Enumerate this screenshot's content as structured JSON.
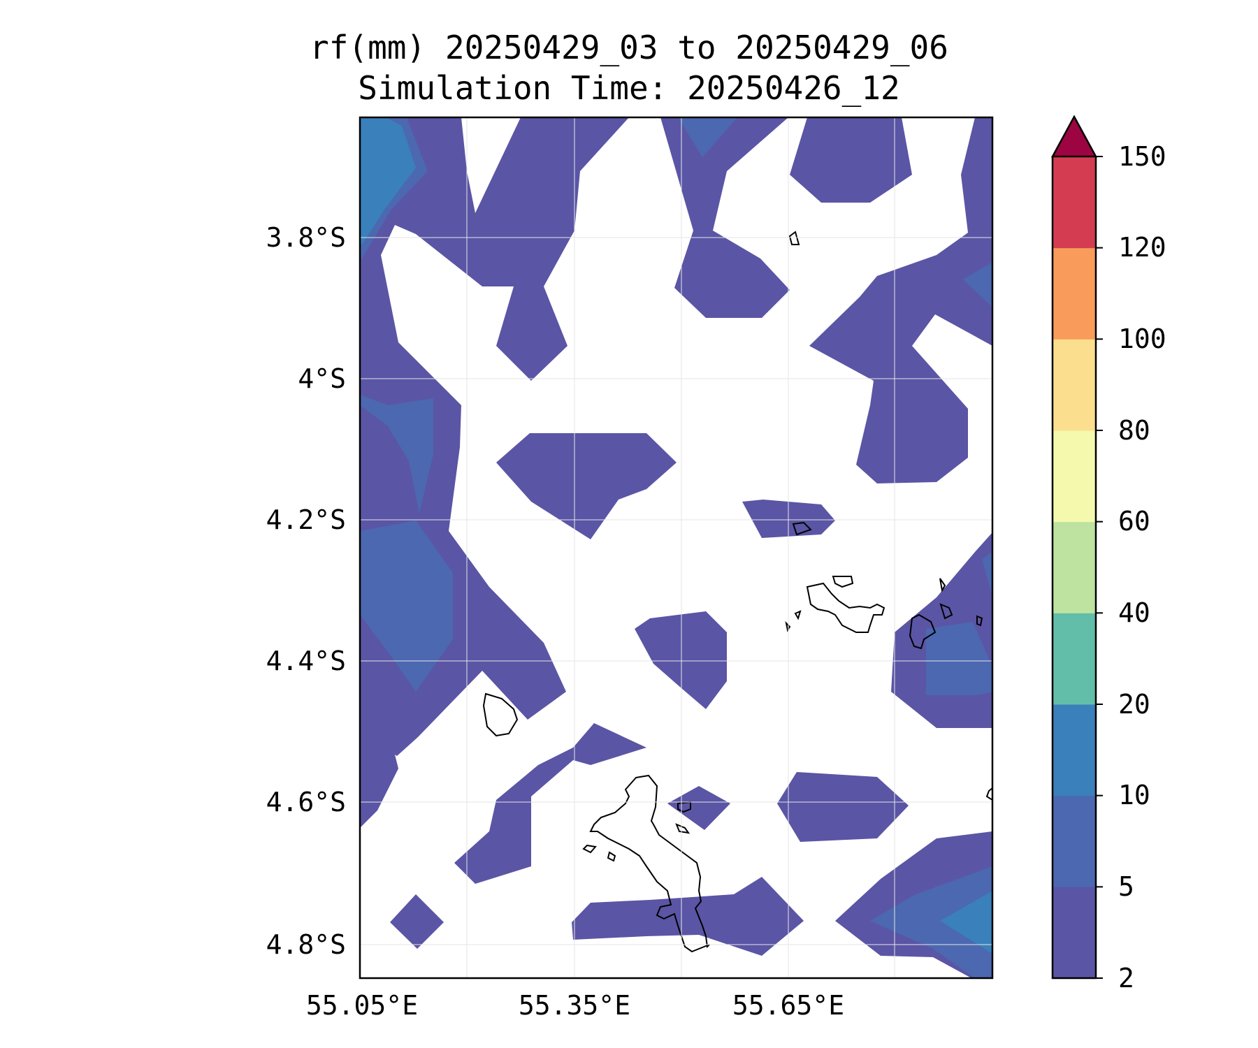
{
  "title": {
    "line1": "rf(mm) 20250429_03 to 20250429_06",
    "line2": "Simulation Time: 20250426_12"
  },
  "map": {
    "lon_ticks": [
      "55.05°E",
      "55.35°E",
      "55.65°E"
    ],
    "lat_ticks": [
      "3.8°S",
      "4°S",
      "4.2°S",
      "4.4°S",
      "4.6°S",
      "4.8°S"
    ],
    "grid": true,
    "coastline": "Seychelles islands (Mahé, Praslin, La Digue, outer islets)"
  },
  "colorbar": {
    "levels": [
      "2",
      "5",
      "10",
      "20",
      "40",
      "60",
      "80",
      "100",
      "120",
      "150"
    ],
    "colors": [
      "#5b55a5",
      "#4b68b0",
      "#3a80bb",
      "#63bea9",
      "#bee3a1",
      "#f4f9ad",
      "#fcdf8e",
      "#f99b5a",
      "#d43d51",
      "#9c0542"
    ],
    "extend": "max"
  },
  "chart_data": {
    "type": "contourf",
    "variable": "rf(mm)",
    "xlim": [
      55.05,
      55.95
    ],
    "ylim": [
      -4.84,
      -3.63
    ],
    "level_bounds": [
      2,
      5,
      10,
      20,
      40,
      60,
      80,
      100,
      120,
      150
    ],
    "max_observed_band": "10-20",
    "dominant_band": "2-5"
  }
}
